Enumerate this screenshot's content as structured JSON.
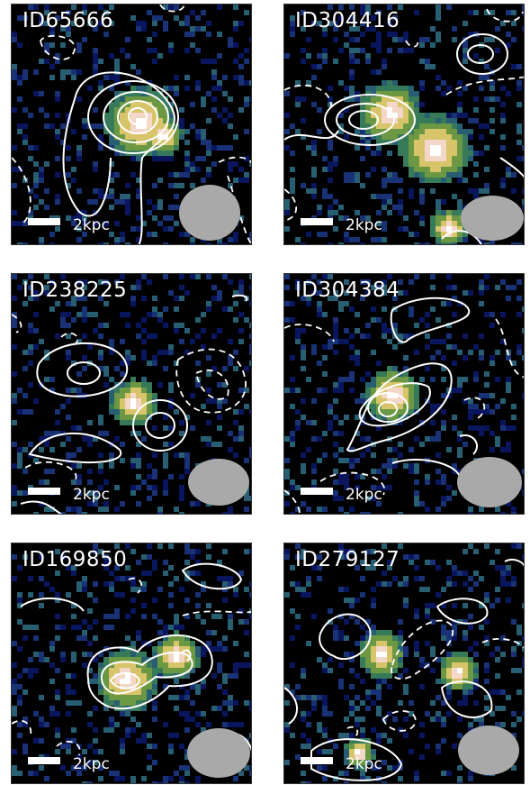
{
  "figure": {
    "panels": [
      {
        "id_label": "ID65666",
        "scale_label": "2kpc"
      },
      {
        "id_label": "ID304416",
        "scale_label": "2kpc"
      },
      {
        "id_label": "ID238225",
        "scale_label": "2kpc"
      },
      {
        "id_label": "ID304384",
        "scale_label": "2kpc"
      },
      {
        "id_label": "ID169850",
        "scale_label": "2kpc"
      },
      {
        "id_label": "ID279127",
        "scale_label": "2kpc"
      }
    ]
  },
  "colors": {
    "panel_bg": "#000000",
    "contour": "#ffffff",
    "beam": "#a9a9a9",
    "pixel_palette": [
      "#0a1a6e",
      "#1d3b8a",
      "#2f6e86",
      "#3f8f6a",
      "#7fb34f",
      "#d8c46a",
      "#f3d7c8",
      "#ffffff"
    ]
  }
}
